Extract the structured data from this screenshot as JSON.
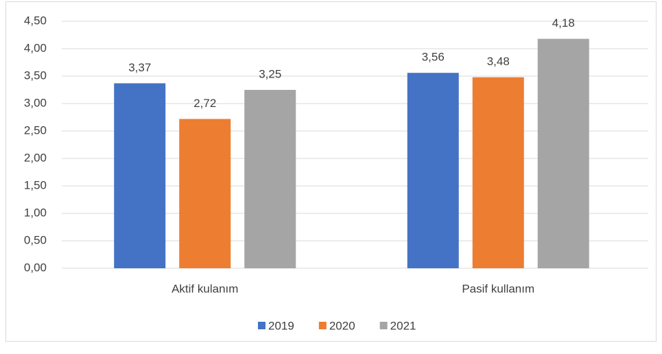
{
  "chart_data": {
    "type": "bar",
    "categories": [
      "Aktif kulanım",
      "Pasif kullanım"
    ],
    "series": [
      {
        "name": "2019",
        "color": "#4472c4",
        "values": [
          3.37,
          3.56
        ],
        "value_labels": [
          "3,37",
          "3,56"
        ]
      },
      {
        "name": "2020",
        "color": "#ed7d31",
        "values": [
          2.72,
          3.48
        ],
        "value_labels": [
          "2,72",
          "3,48"
        ]
      },
      {
        "name": "2021",
        "color": "#a5a5a5",
        "values": [
          3.25,
          4.18
        ],
        "value_labels": [
          "3,25",
          "4,18"
        ]
      }
    ],
    "ylim": [
      0,
      4.5
    ],
    "yticks": [
      {
        "value": 0,
        "label": "0,00"
      },
      {
        "value": 0.5,
        "label": "0,50"
      },
      {
        "value": 1,
        "label": "1,00"
      },
      {
        "value": 1.5,
        "label": "1,50"
      },
      {
        "value": 2,
        "label": "2,00"
      },
      {
        "value": 2.5,
        "label": "2,50"
      },
      {
        "value": 3,
        "label": "3,00"
      },
      {
        "value": 3.5,
        "label": "3,50"
      },
      {
        "value": 4,
        "label": "4,00"
      },
      {
        "value": 4.5,
        "label": "4,50"
      }
    ],
    "grid": true,
    "legend": "bottom"
  }
}
